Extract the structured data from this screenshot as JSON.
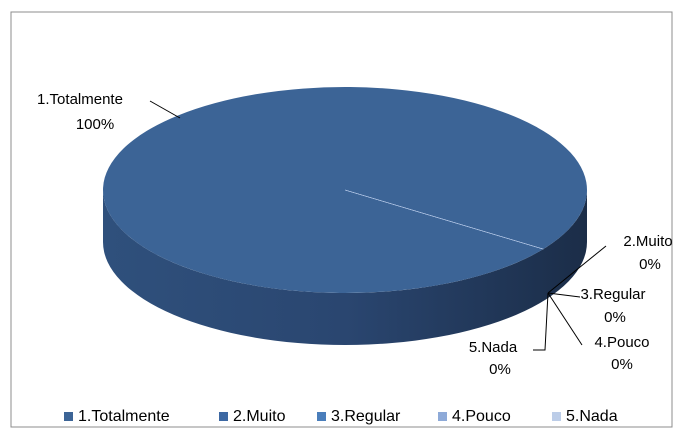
{
  "chart_data": {
    "type": "pie3d",
    "categories": [
      "1.Totalmente",
      "2.Muito",
      "3.Regular",
      "4.Pouco",
      "5.Nada"
    ],
    "values": [
      100,
      0,
      0,
      0,
      0
    ],
    "value_labels": [
      "100%",
      "0%",
      "0%",
      "0%",
      "0%"
    ],
    "colors": [
      "#3c6496",
      "#3d68a3",
      "#4a7ebb",
      "#8eaad8",
      "#bccde8"
    ],
    "legend": "bottom"
  }
}
